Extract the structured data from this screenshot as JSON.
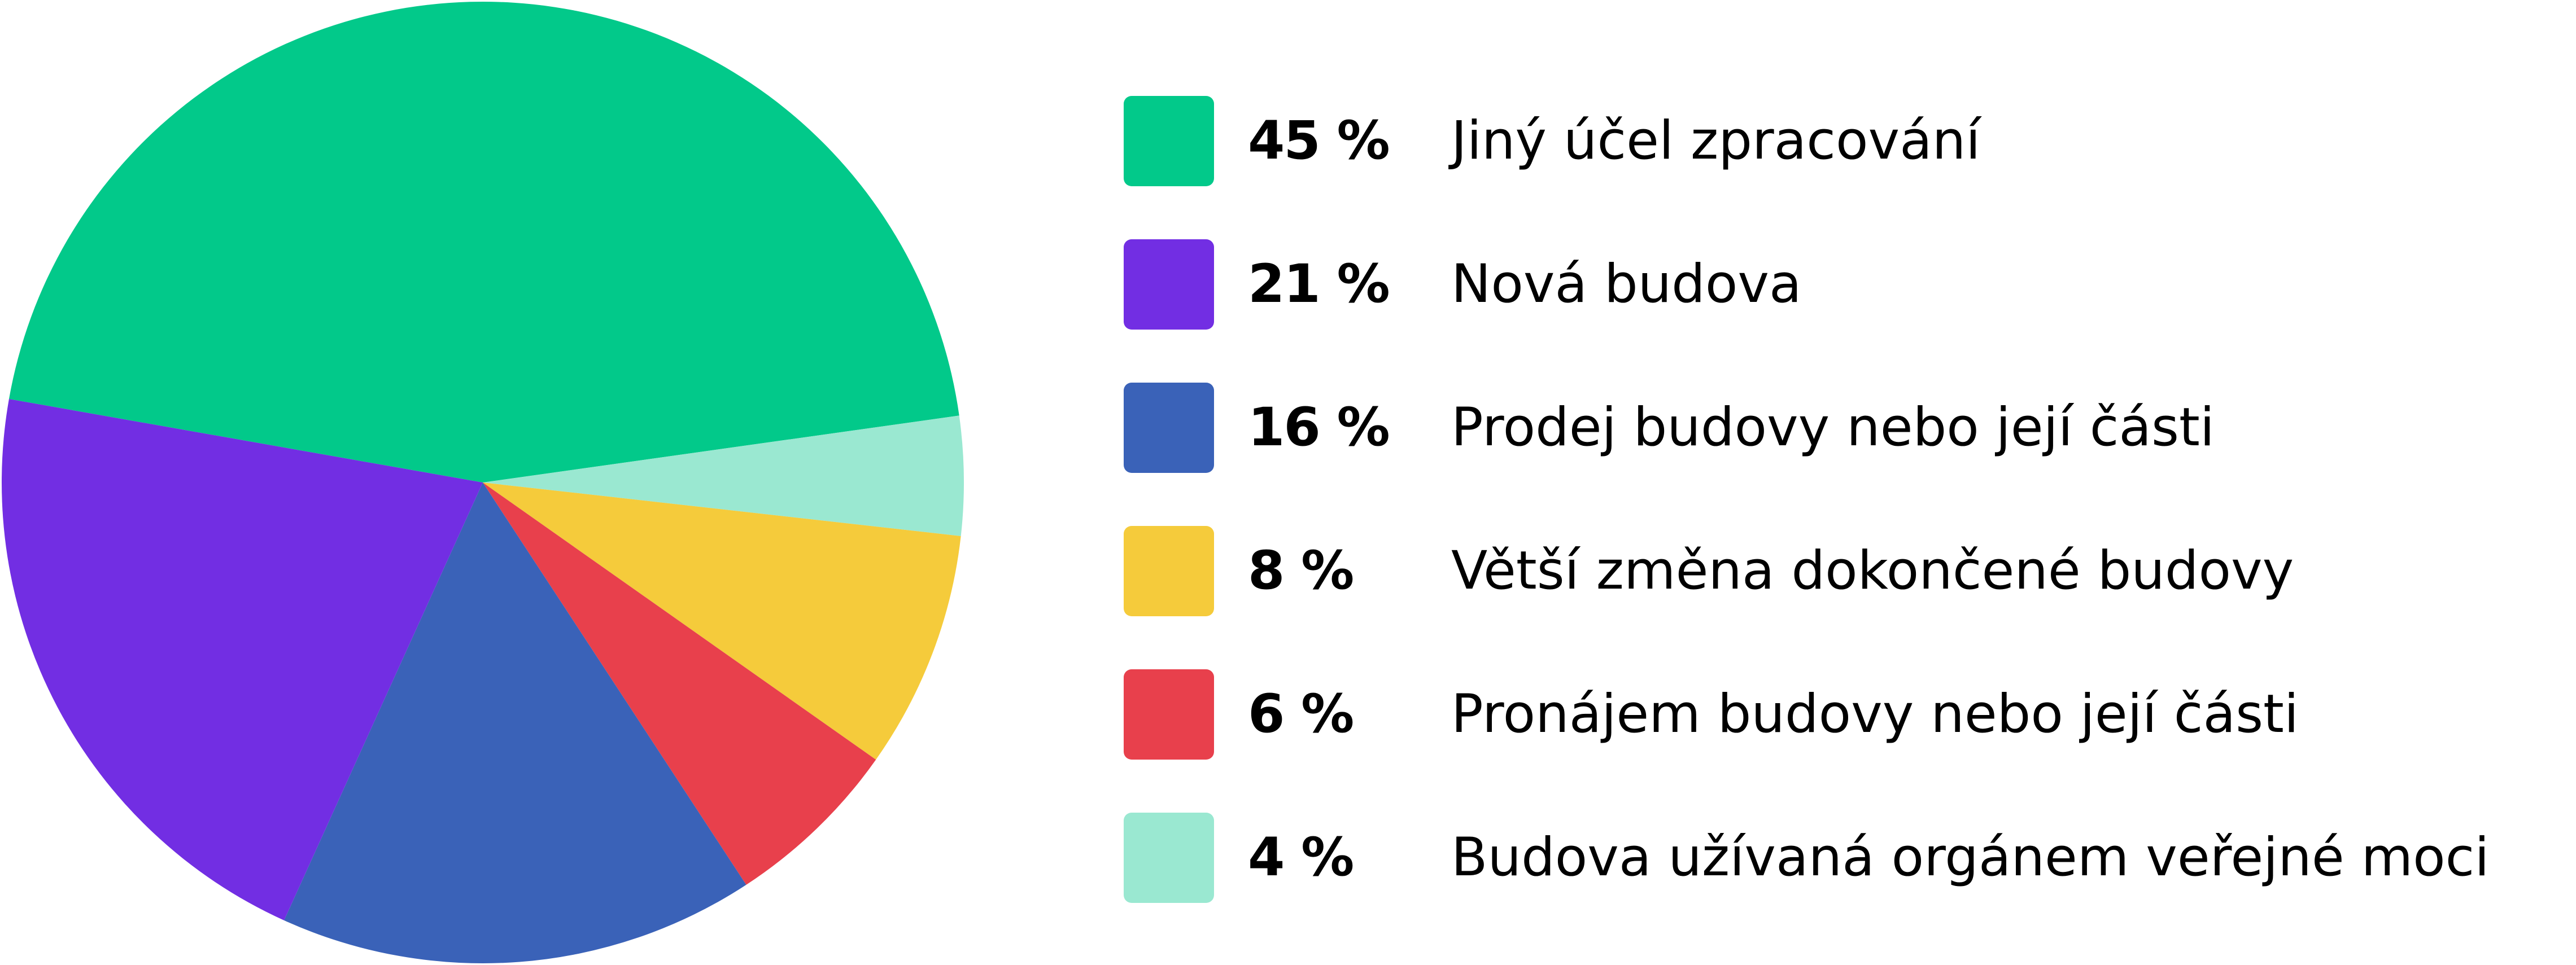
{
  "chart_data": {
    "type": "pie",
    "slices": [
      {
        "label": "Jiný účel zpracování",
        "value": 45,
        "value_label": "45 %",
        "color": "#02c98a"
      },
      {
        "label": "Nová budova",
        "value": 21,
        "value_label": "21 %",
        "color": "#722ee3"
      },
      {
        "label": "Prodej budovy nebo její části",
        "value": 16,
        "value_label": "16 %",
        "color": "#3a62b8"
      },
      {
        "label": "Větší změna dokončené budovy",
        "value": 8,
        "value_label": "8 %",
        "color": "#f5cb3b"
      },
      {
        "label": "Pronájem budovy nebo její části",
        "value": 6,
        "value_label": "6 %",
        "color": "#e8404c"
      },
      {
        "label": "Budova užívaná orgánem veřejné moci",
        "value": 4,
        "value_label": "4 %",
        "color": "#9ae8d1"
      }
    ],
    "legend_placement": "right"
  }
}
